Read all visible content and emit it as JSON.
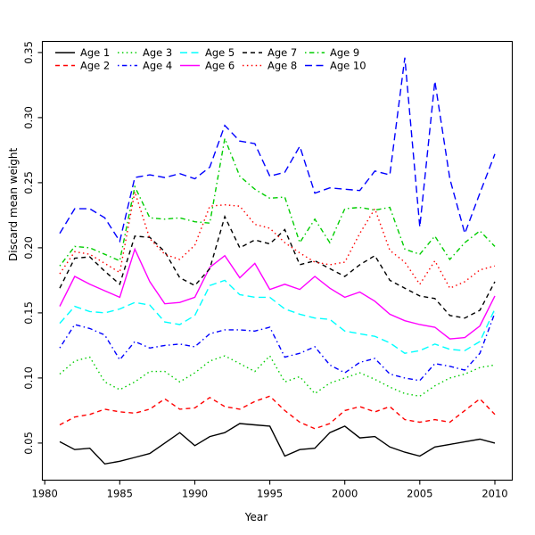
{
  "chart_data": {
    "type": "line",
    "title": "",
    "xlabel": "Year",
    "ylabel": "Discard mean weight",
    "grid": false,
    "legend_position": "top-left",
    "legend_border": false,
    "x_range": [
      1979.84,
      2011.16
    ],
    "y_range": [
      0.0215,
      0.3585
    ],
    "x_ticks": [
      1980,
      1985,
      1990,
      1995,
      2000,
      2005,
      2010
    ],
    "y_ticks": [
      0.05,
      0.1,
      0.15,
      0.2,
      0.25,
      0.3,
      0.35
    ],
    "y_tick_labels": [
      "0.05",
      "0.10",
      "0.15",
      "0.20",
      "0.25",
      "0.30",
      "0.35"
    ],
    "x": [
      1981,
      1982,
      1983,
      1984,
      1985,
      1986,
      1987,
      1988,
      1989,
      1990,
      1991,
      1992,
      1993,
      1994,
      1995,
      1996,
      1997,
      1998,
      1999,
      2000,
      2001,
      2002,
      2003,
      2004,
      2005,
      2006,
      2007,
      2008,
      2009,
      2010
    ],
    "series": [
      {
        "name": "Age 1",
        "color": "#000000",
        "linestyle": "solid",
        "values": [
          0.051,
          0.045,
          0.046,
          0.034,
          0.036,
          0.039,
          0.042,
          0.05,
          0.058,
          0.048,
          0.055,
          0.058,
          0.065,
          0.064,
          0.063,
          0.04,
          0.045,
          0.046,
          0.058,
          0.063,
          0.054,
          0.055,
          0.047,
          0.043,
          0.04,
          0.047,
          0.049,
          0.051,
          0.053,
          0.05
        ]
      },
      {
        "name": "Age 2",
        "color": "#FF0000",
        "linestyle": "dashed",
        "values": [
          0.064,
          0.07,
          0.072,
          0.076,
          0.074,
          0.073,
          0.076,
          0.084,
          0.076,
          0.077,
          0.085,
          0.078,
          0.076,
          0.082,
          0.086,
          0.075,
          0.066,
          0.061,
          0.065,
          0.075,
          0.078,
          0.074,
          0.078,
          0.068,
          0.066,
          0.068,
          0.066,
          0.075,
          0.084,
          0.072
        ]
      },
      {
        "name": "Age 3",
        "color": "#00CD00",
        "linestyle": "dotted",
        "values": [
          0.103,
          0.113,
          0.116,
          0.097,
          0.091,
          0.097,
          0.105,
          0.105,
          0.097,
          0.104,
          0.113,
          0.117,
          0.111,
          0.105,
          0.117,
          0.097,
          0.101,
          0.088,
          0.096,
          0.1,
          0.104,
          0.099,
          0.093,
          0.088,
          0.086,
          0.094,
          0.1,
          0.103,
          0.108,
          0.11
        ]
      },
      {
        "name": "Age 4",
        "color": "#0000FF",
        "linestyle": "dotdash",
        "values": [
          0.123,
          0.141,
          0.138,
          0.133,
          0.114,
          0.128,
          0.123,
          0.125,
          0.126,
          0.124,
          0.134,
          0.137,
          0.137,
          0.136,
          0.139,
          0.116,
          0.119,
          0.124,
          0.11,
          0.104,
          0.112,
          0.115,
          0.103,
          0.1,
          0.098,
          0.111,
          0.109,
          0.106,
          0.119,
          0.15
        ]
      },
      {
        "name": "Age 5",
        "color": "#00FFFF",
        "linestyle": "longdash",
        "values": [
          0.142,
          0.155,
          0.151,
          0.15,
          0.153,
          0.158,
          0.156,
          0.143,
          0.141,
          0.148,
          0.171,
          0.175,
          0.164,
          0.162,
          0.162,
          0.153,
          0.149,
          0.146,
          0.145,
          0.136,
          0.134,
          0.132,
          0.127,
          0.119,
          0.121,
          0.126,
          0.122,
          0.121,
          0.128,
          0.153
        ]
      },
      {
        "name": "Age 6",
        "color": "#FF00FF",
        "linestyle": "solid",
        "values": [
          0.155,
          0.178,
          0.172,
          0.167,
          0.162,
          0.199,
          0.174,
          0.157,
          0.158,
          0.162,
          0.185,
          0.194,
          0.177,
          0.188,
          0.168,
          0.172,
          0.168,
          0.178,
          0.169,
          0.162,
          0.166,
          0.159,
          0.149,
          0.144,
          0.141,
          0.139,
          0.13,
          0.131,
          0.14,
          0.163
        ]
      },
      {
        "name": "Age 7",
        "color": "#000000",
        "linestyle": "dashed",
        "values": [
          0.169,
          0.192,
          0.193,
          0.182,
          0.172,
          0.209,
          0.208,
          0.197,
          0.177,
          0.171,
          0.184,
          0.224,
          0.2,
          0.206,
          0.203,
          0.214,
          0.187,
          0.19,
          0.184,
          0.178,
          0.187,
          0.194,
          0.175,
          0.169,
          0.163,
          0.161,
          0.148,
          0.146,
          0.152,
          0.174
        ]
      },
      {
        "name": "Age 8",
        "color": "#FF0000",
        "linestyle": "dotted",
        "values": [
          0.18,
          0.197,
          0.195,
          0.188,
          0.181,
          0.243,
          0.207,
          0.195,
          0.191,
          0.202,
          0.232,
          0.233,
          0.232,
          0.218,
          0.215,
          0.204,
          0.196,
          0.189,
          0.187,
          0.189,
          0.211,
          0.23,
          0.198,
          0.189,
          0.172,
          0.19,
          0.169,
          0.174,
          0.183,
          0.186
        ]
      },
      {
        "name": "Age 9",
        "color": "#00CD00",
        "linestyle": "dotdash",
        "values": [
          0.186,
          0.201,
          0.2,
          0.195,
          0.19,
          0.247,
          0.223,
          0.222,
          0.223,
          0.22,
          0.219,
          0.284,
          0.255,
          0.245,
          0.238,
          0.239,
          0.204,
          0.222,
          0.204,
          0.23,
          0.231,
          0.229,
          0.231,
          0.199,
          0.195,
          0.209,
          0.191,
          0.204,
          0.213,
          0.201
        ]
      },
      {
        "name": "Age 10",
        "color": "#0000FF",
        "linestyle": "longdash",
        "values": [
          0.211,
          0.23,
          0.23,
          0.223,
          0.205,
          0.254,
          0.256,
          0.254,
          0.257,
          0.253,
          0.262,
          0.294,
          0.282,
          0.28,
          0.255,
          0.258,
          0.278,
          0.242,
          0.246,
          0.245,
          0.244,
          0.259,
          0.256,
          0.346,
          0.216,
          0.328,
          0.253,
          0.211,
          0.242,
          0.272
        ]
      }
    ]
  }
}
